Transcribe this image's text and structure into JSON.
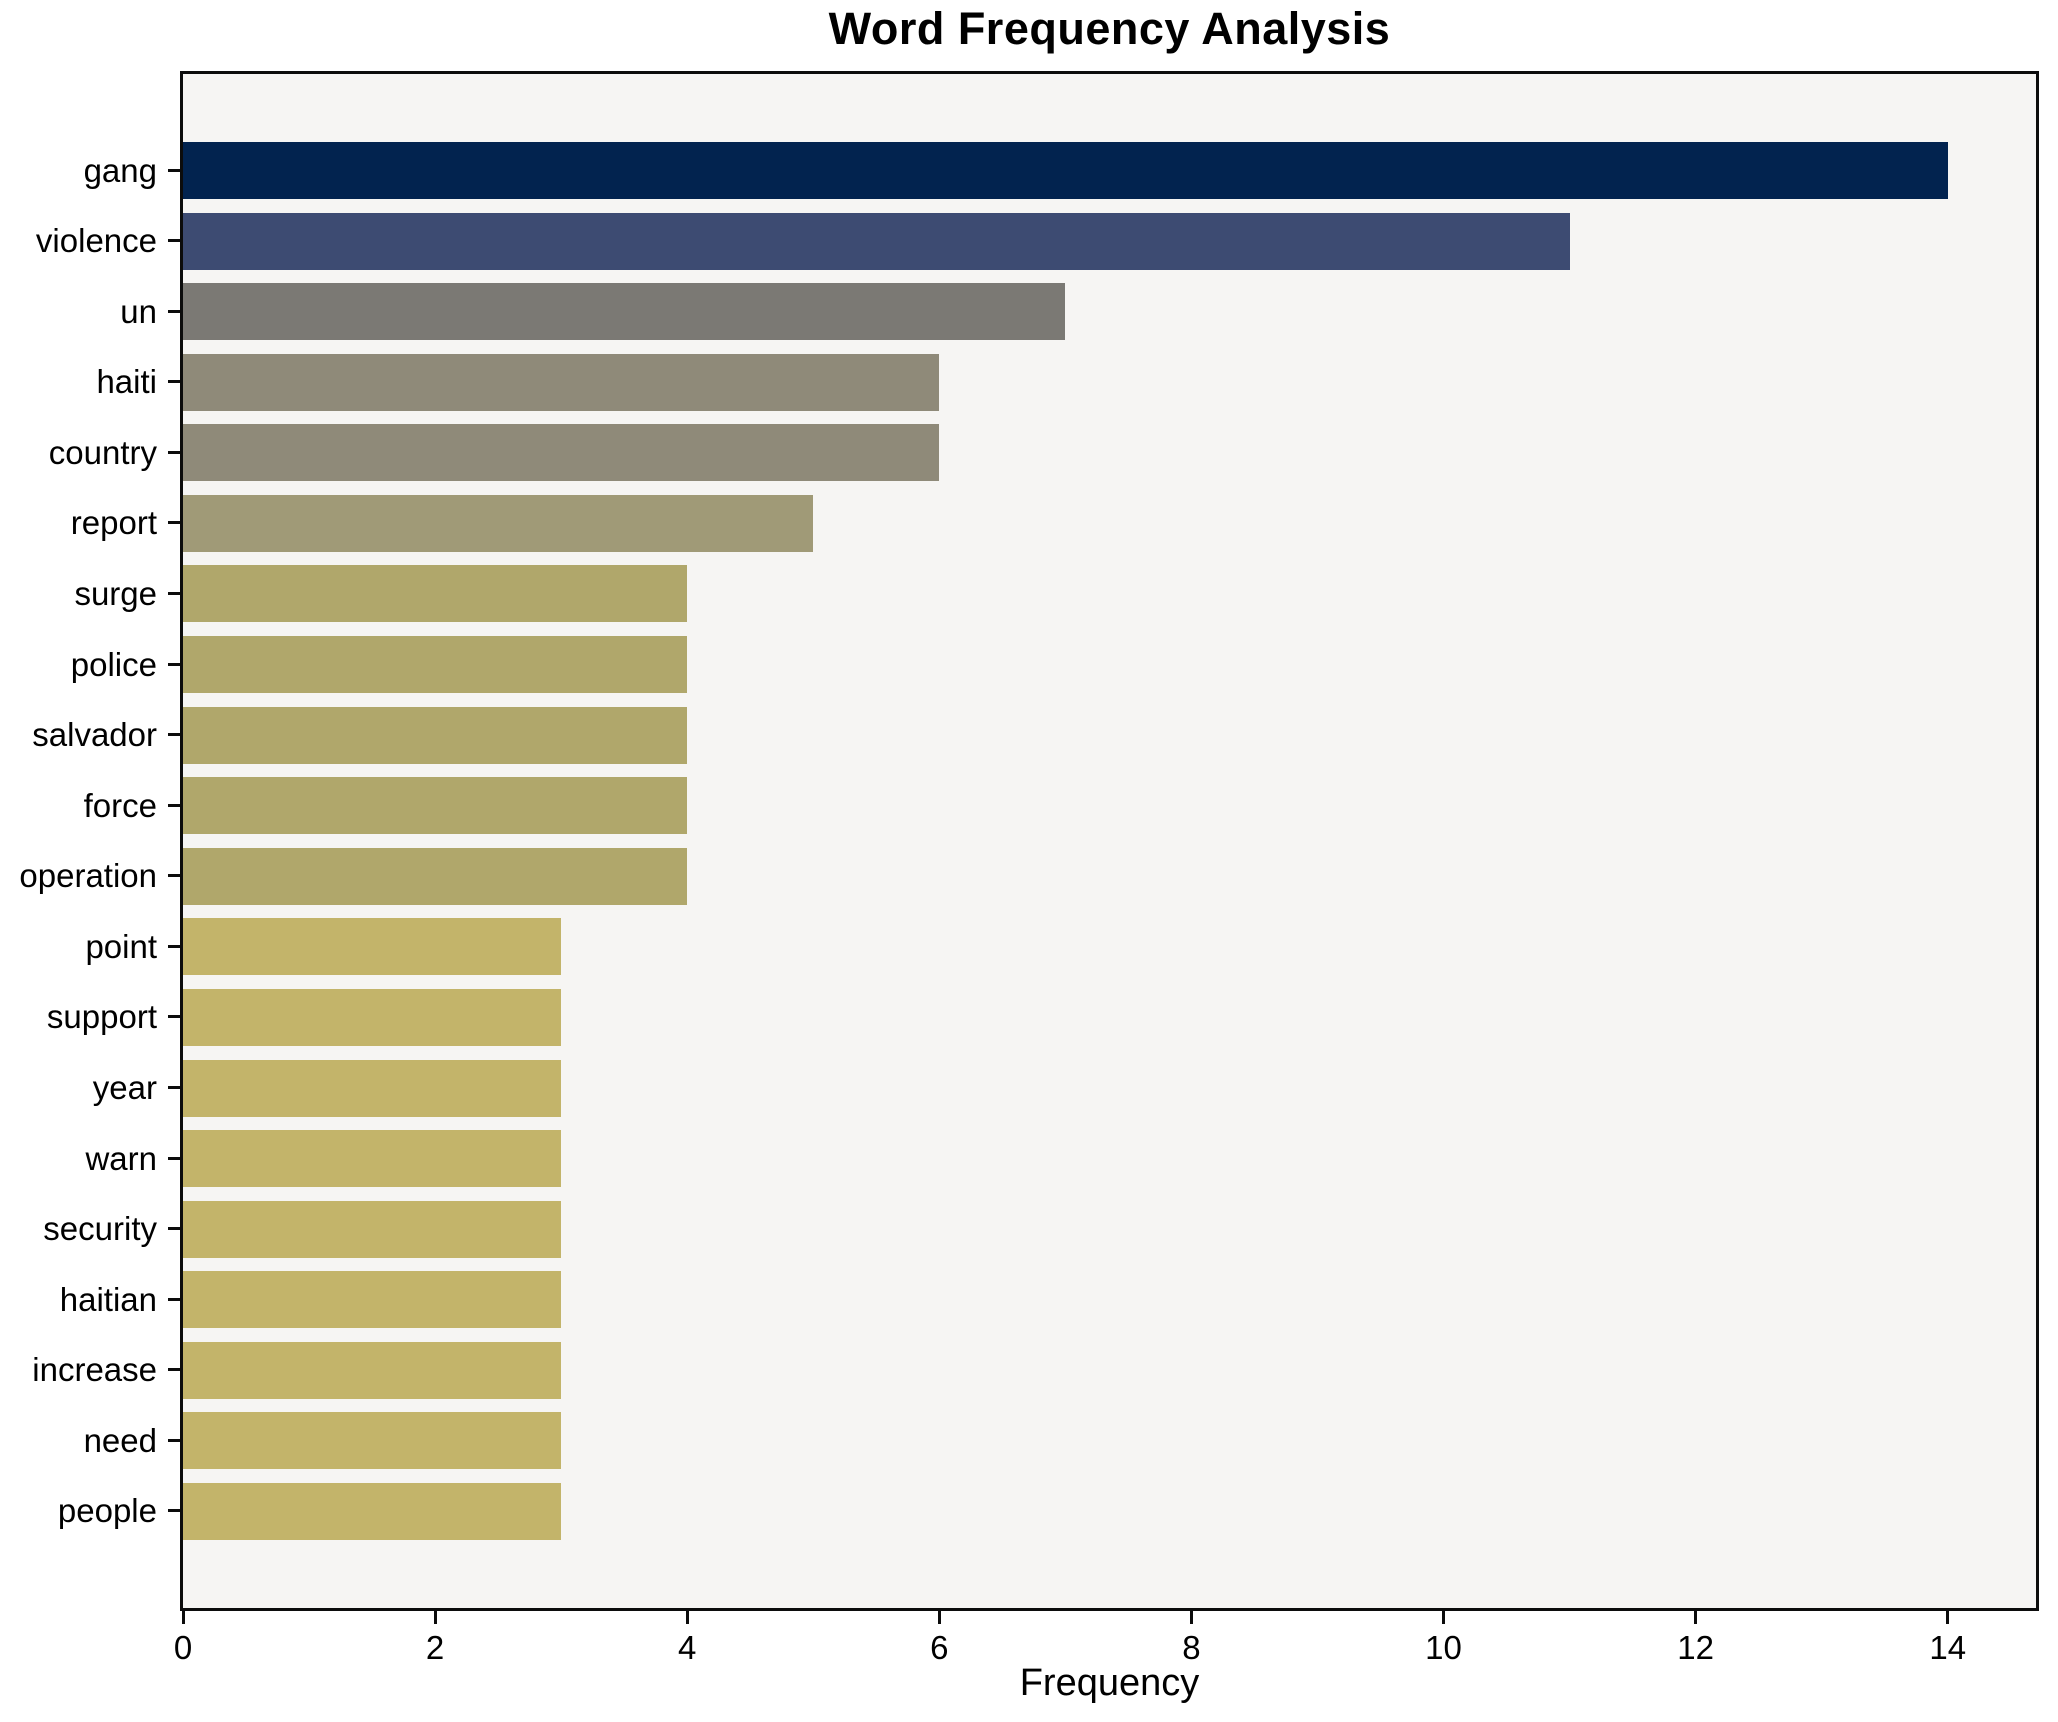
{
  "chart_data": {
    "type": "bar",
    "orientation": "horizontal",
    "title": "Word Frequency Analysis",
    "xlabel": "Frequency",
    "ylabel": "",
    "categories": [
      "gang",
      "violence",
      "un",
      "haiti",
      "country",
      "report",
      "surge",
      "police",
      "salvador",
      "force",
      "operation",
      "point",
      "support",
      "year",
      "warn",
      "security",
      "haitian",
      "increase",
      "need",
      "people"
    ],
    "values": [
      14,
      11,
      7,
      6,
      6,
      5,
      4,
      4,
      4,
      4,
      4,
      3,
      3,
      3,
      3,
      3,
      3,
      3,
      3,
      3
    ],
    "bar_colors": [
      "#02234f",
      "#3d4b72",
      "#7b7974",
      "#8f8a79",
      "#8f8a79",
      "#a09a77",
      "#b0a76b",
      "#b0a76b",
      "#b0a76b",
      "#b0a76b",
      "#b0a76b",
      "#c3b46a",
      "#c3b46a",
      "#c3b46a",
      "#c3b46a",
      "#c3b46a",
      "#c3b46a",
      "#c3b46a",
      "#c3b46a",
      "#c3b46a"
    ],
    "xticks": [
      0,
      2,
      4,
      6,
      8,
      10,
      12,
      14
    ],
    "xlim": [
      0,
      14.7
    ],
    "grid": false,
    "legend_position": "none",
    "plot_bg": "#f6f5f3",
    "figure_bg": "#ffffff",
    "spine_color": "#0c0c0c"
  }
}
